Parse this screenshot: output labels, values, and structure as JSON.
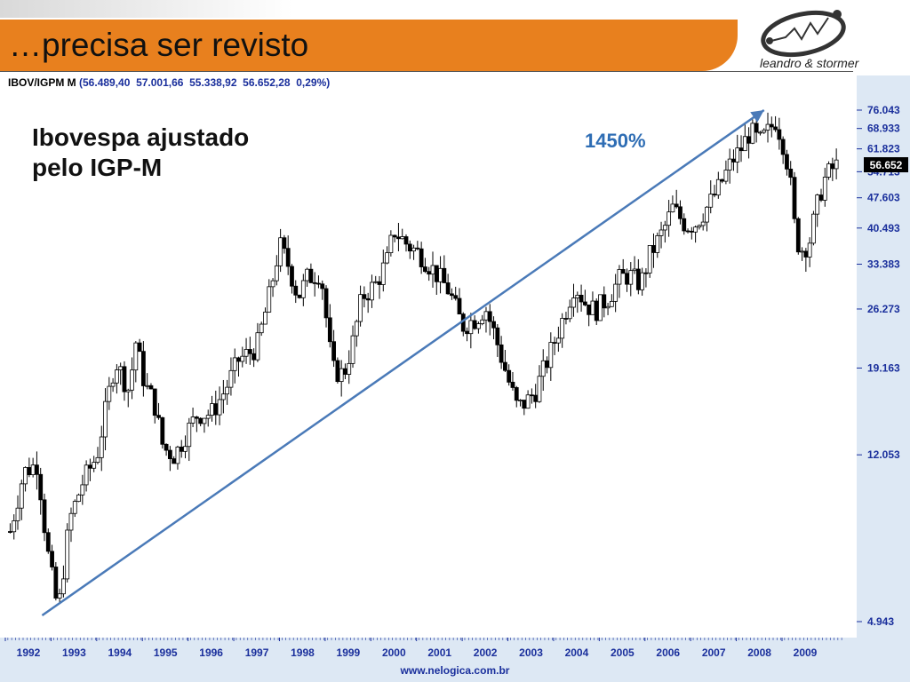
{
  "slide": {
    "title": "…precisa ser revisto",
    "logo_text": "leandro & stormer",
    "footer": "www.nelogica.com.br"
  },
  "ticker": {
    "symbol": "IBOV/IGPM M",
    "values": "(56.489,40  57.001,66  55.338,92  56.652,28  0,29%)"
  },
  "annotation": {
    "text_line1": "Ibovespa ajustado",
    "text_line2": "pelo IGP-M",
    "growth_label": "1450%"
  },
  "colors": {
    "header": "#e8801e",
    "axis_text": "#1a2f9c",
    "arrow": "#4a7ab8",
    "candle": "#000000",
    "panel": "#dde8f4"
  },
  "chart_data": {
    "type": "candlestick",
    "scale": "log",
    "ylim": [
      4.943,
      76.043
    ],
    "xlim": [
      1991.55,
      2009.8
    ],
    "y_ticks": [
      "76.043",
      "68.933",
      "61.823",
      "54.713",
      "47.603",
      "40.493",
      "33.383",
      "26.273",
      "19.163",
      "12.053",
      "4.943"
    ],
    "x_ticks": [
      "1992",
      "1993",
      "1994",
      "1995",
      "1996",
      "1997",
      "1998",
      "1999",
      "2000",
      "2001",
      "2002",
      "2003",
      "2004",
      "2005",
      "2006",
      "2007",
      "2008",
      "2009"
    ],
    "last_value": "56.652",
    "close_series": [
      {
        "x": 1991.6,
        "y": 8.0
      },
      {
        "x": 1991.9,
        "y": 11.0
      },
      {
        "x": 1992.2,
        "y": 11.5
      },
      {
        "x": 1992.4,
        "y": 7.4
      },
      {
        "x": 1992.5,
        "y": 6.4
      },
      {
        "x": 1992.65,
        "y": 5.2
      },
      {
        "x": 1992.9,
        "y": 8.5
      },
      {
        "x": 1993.2,
        "y": 10.5
      },
      {
        "x": 1993.5,
        "y": 12.0
      },
      {
        "x": 1993.7,
        "y": 15.5
      },
      {
        "x": 1993.9,
        "y": 20.0
      },
      {
        "x": 1994.2,
        "y": 17.0
      },
      {
        "x": 1994.35,
        "y": 22.0
      },
      {
        "x": 1994.55,
        "y": 17.5
      },
      {
        "x": 1994.75,
        "y": 16.0
      },
      {
        "x": 1994.95,
        "y": 12.5
      },
      {
        "x": 1995.2,
        "y": 12.0
      },
      {
        "x": 1995.45,
        "y": 13.5
      },
      {
        "x": 1995.7,
        "y": 15.0
      },
      {
        "x": 1996.0,
        "y": 15.0
      },
      {
        "x": 1996.3,
        "y": 17.0
      },
      {
        "x": 1996.6,
        "y": 20.0
      },
      {
        "x": 1996.9,
        "y": 21.0
      },
      {
        "x": 1997.0,
        "y": 21.5
      },
      {
        "x": 1997.25,
        "y": 27.5
      },
      {
        "x": 1997.5,
        "y": 37.0
      },
      {
        "x": 1997.7,
        "y": 33.0
      },
      {
        "x": 1997.9,
        "y": 28.0
      },
      {
        "x": 1998.1,
        "y": 31.0
      },
      {
        "x": 1998.4,
        "y": 32.0
      },
      {
        "x": 1998.65,
        "y": 19.0
      },
      {
        "x": 1998.9,
        "y": 18.5
      },
      {
        "x": 1999.1,
        "y": 22.0
      },
      {
        "x": 1999.3,
        "y": 28.0
      },
      {
        "x": 1999.6,
        "y": 30.0
      },
      {
        "x": 1999.85,
        "y": 34.0
      },
      {
        "x": 2000.0,
        "y": 40.0
      },
      {
        "x": 2000.3,
        "y": 37.0
      },
      {
        "x": 2000.6,
        "y": 35.0
      },
      {
        "x": 2000.9,
        "y": 32.0
      },
      {
        "x": 2001.2,
        "y": 29.0
      },
      {
        "x": 2001.5,
        "y": 24.0
      },
      {
        "x": 2001.8,
        "y": 25.0
      },
      {
        "x": 2002.0,
        "y": 26.5
      },
      {
        "x": 2002.2,
        "y": 23.0
      },
      {
        "x": 2002.5,
        "y": 18.0
      },
      {
        "x": 2002.7,
        "y": 15.5
      },
      {
        "x": 2002.9,
        "y": 16.0
      },
      {
        "x": 2003.1,
        "y": 17.0
      },
      {
        "x": 2003.4,
        "y": 20.5
      },
      {
        "x": 2003.7,
        "y": 25.0
      },
      {
        "x": 2003.95,
        "y": 30.0
      },
      {
        "x": 2004.2,
        "y": 27.0
      },
      {
        "x": 2004.4,
        "y": 26.0
      },
      {
        "x": 2004.7,
        "y": 28.0
      },
      {
        "x": 2004.95,
        "y": 31.0
      },
      {
        "x": 2005.15,
        "y": 31.5
      },
      {
        "x": 2005.4,
        "y": 30.0
      },
      {
        "x": 2005.6,
        "y": 35.0
      },
      {
        "x": 2005.9,
        "y": 40.0
      },
      {
        "x": 2006.1,
        "y": 45.0
      },
      {
        "x": 2006.4,
        "y": 41.0
      },
      {
        "x": 2006.6,
        "y": 41.5
      },
      {
        "x": 2006.9,
        "y": 46.0
      },
      {
        "x": 2007.1,
        "y": 50.0
      },
      {
        "x": 2007.4,
        "y": 58.0
      },
      {
        "x": 2007.6,
        "y": 62.0
      },
      {
        "x": 2007.8,
        "y": 68.0
      },
      {
        "x": 2008.0,
        "y": 64.0
      },
      {
        "x": 2008.2,
        "y": 68.0
      },
      {
        "x": 2008.35,
        "y": 72.0
      },
      {
        "x": 2008.5,
        "y": 65.0
      },
      {
        "x": 2008.65,
        "y": 55.0
      },
      {
        "x": 2008.8,
        "y": 38.0
      },
      {
        "x": 2008.95,
        "y": 36.0
      },
      {
        "x": 2009.1,
        "y": 38.0
      },
      {
        "x": 2009.25,
        "y": 45.0
      },
      {
        "x": 2009.4,
        "y": 52.0
      },
      {
        "x": 2009.55,
        "y": 55.0
      },
      {
        "x": 2009.7,
        "y": 56.652
      }
    ],
    "trend_arrow": {
      "from": {
        "x": 1992.3,
        "y": 4.943
      },
      "to": {
        "x": 2008.1,
        "y": 76.043
      }
    }
  }
}
